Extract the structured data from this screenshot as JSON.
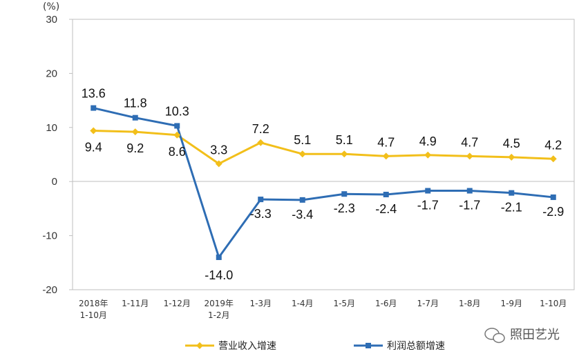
{
  "chart_data": {
    "type": "line",
    "unit_label": "(%)",
    "categories": [
      [
        "2018年",
        "1-10月"
      ],
      [
        "1-11月"
      ],
      [
        "1-12月"
      ],
      [
        "2019年",
        "1-2月"
      ],
      [
        "1-3月"
      ],
      [
        "1-4月"
      ],
      [
        "1-5月"
      ],
      [
        "1-6月"
      ],
      [
        "1-7月"
      ],
      [
        "1-8月"
      ],
      [
        "1-9月"
      ],
      [
        "1-10月"
      ]
    ],
    "series": [
      {
        "name": "营业收入增速",
        "color": "#f2bf1a",
        "marker": "diamond",
        "values": [
          9.4,
          9.2,
          8.6,
          3.3,
          7.2,
          5.1,
          5.1,
          4.7,
          4.9,
          4.7,
          4.5,
          4.2
        ],
        "labels": [
          "9.4",
          "9.2",
          "8.6",
          "3.3",
          "7.2",
          "5.1",
          "5.1",
          "4.7",
          "4.9",
          "4.7",
          "4.5",
          "4.2"
        ]
      },
      {
        "name": "利润总额增速",
        "color": "#2e6db4",
        "marker": "square",
        "values": [
          13.6,
          11.8,
          10.3,
          -14.0,
          -3.3,
          -3.4,
          -2.3,
          -2.4,
          -1.7,
          -1.7,
          -2.1,
          -2.9
        ],
        "labels": [
          "13.6",
          "11.8",
          "10.3",
          "-14.0",
          "-3.3",
          "-3.4",
          "-2.3",
          "-2.4",
          "-1.7",
          "-1.7",
          "-2.1",
          "-2.9"
        ]
      }
    ],
    "ylim": [
      -20,
      30
    ],
    "yticks": [
      "30",
      "20",
      "10",
      "0",
      "-10",
      "-20"
    ],
    "ytick_values": [
      30,
      20,
      10,
      0,
      -10,
      -20
    ],
    "legend_position": "bottom",
    "grid": false
  },
  "watermark": {
    "text": "照田艺光",
    "icon": "wechat-icon"
  }
}
